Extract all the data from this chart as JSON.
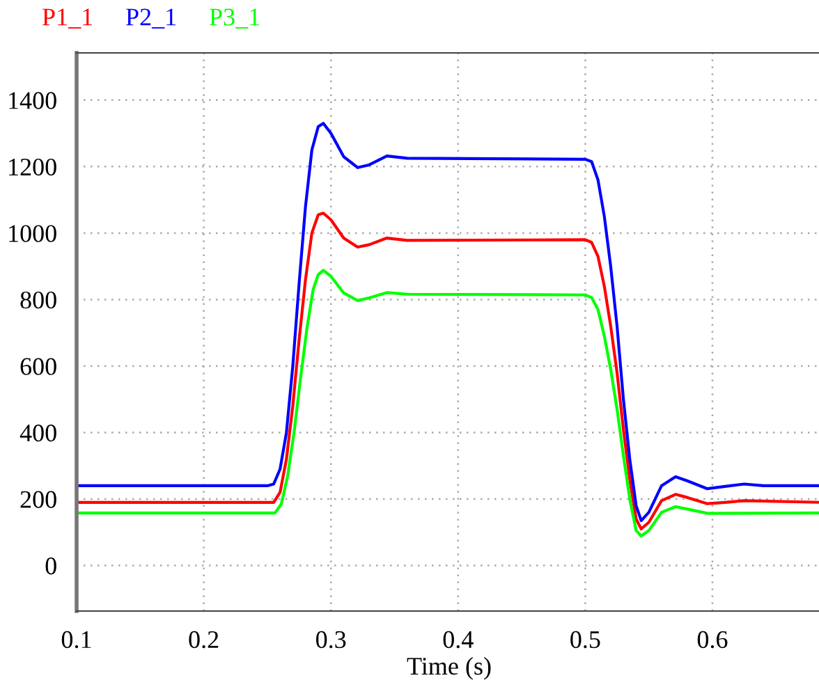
{
  "chart_data": {
    "type": "line",
    "xlabel": "Time (s)",
    "xlim": [
      0.1,
      0.686
    ],
    "ylim": [
      -137,
      1542
    ],
    "xticks": [
      0.1,
      0.2,
      0.3,
      0.4,
      0.5,
      0.6
    ],
    "yticks": [
      0,
      200,
      400,
      600,
      800,
      1000,
      1200,
      1400
    ],
    "grid": true,
    "legend": "top left",
    "line_style": "solid",
    "marker": "none",
    "series": [
      {
        "name": "P1_1",
        "color": "#ff0000",
        "x": [
          0.1,
          0.255,
          0.26,
          0.265,
          0.27,
          0.275,
          0.28,
          0.285,
          0.29,
          0.294,
          0.3,
          0.31,
          0.321,
          0.33,
          0.344,
          0.36,
          0.5,
          0.505,
          0.51,
          0.515,
          0.52,
          0.525,
          0.53,
          0.535,
          0.54,
          0.544,
          0.55,
          0.56,
          0.571,
          0.58,
          0.596,
          0.61,
          0.625,
          0.686
        ],
        "values": [
          190,
          190,
          220,
          320,
          480,
          680,
          860,
          1000,
          1055,
          1060,
          1040,
          985,
          958,
          965,
          985,
          978,
          980,
          972,
          930,
          840,
          720,
          580,
          410,
          260,
          140,
          110,
          130,
          195,
          214,
          205,
          186,
          190,
          195,
          190
        ]
      },
      {
        "name": "P2_1",
        "color": "#0000ff",
        "x": [
          0.1,
          0.25,
          0.255,
          0.26,
          0.265,
          0.27,
          0.275,
          0.28,
          0.285,
          0.29,
          0.294,
          0.3,
          0.31,
          0.321,
          0.33,
          0.344,
          0.36,
          0.5,
          0.505,
          0.51,
          0.515,
          0.52,
          0.525,
          0.53,
          0.535,
          0.54,
          0.544,
          0.55,
          0.56,
          0.571,
          0.58,
          0.596,
          0.61,
          0.625,
          0.64,
          0.686
        ],
        "values": [
          240,
          240,
          245,
          290,
          400,
          600,
          850,
          1080,
          1250,
          1320,
          1330,
          1300,
          1230,
          1197,
          1205,
          1232,
          1225,
          1222,
          1215,
          1160,
          1050,
          900,
          720,
          500,
          320,
          180,
          135,
          160,
          240,
          267,
          255,
          231,
          238,
          245,
          240,
          240
        ]
      },
      {
        "name": "P3_1",
        "color": "#00ff00",
        "x": [
          0.1,
          0.256,
          0.261,
          0.266,
          0.271,
          0.276,
          0.281,
          0.286,
          0.29,
          0.294,
          0.3,
          0.31,
          0.321,
          0.33,
          0.344,
          0.36,
          0.5,
          0.505,
          0.51,
          0.515,
          0.52,
          0.525,
          0.53,
          0.535,
          0.54,
          0.544,
          0.55,
          0.56,
          0.571,
          0.58,
          0.596,
          0.686
        ],
        "values": [
          158,
          158,
          185,
          270,
          400,
          560,
          710,
          830,
          875,
          888,
          870,
          820,
          797,
          805,
          821,
          816,
          814,
          806,
          770,
          690,
          590,
          470,
          330,
          200,
          105,
          89,
          105,
          160,
          177,
          170,
          157,
          158
        ]
      }
    ]
  }
}
